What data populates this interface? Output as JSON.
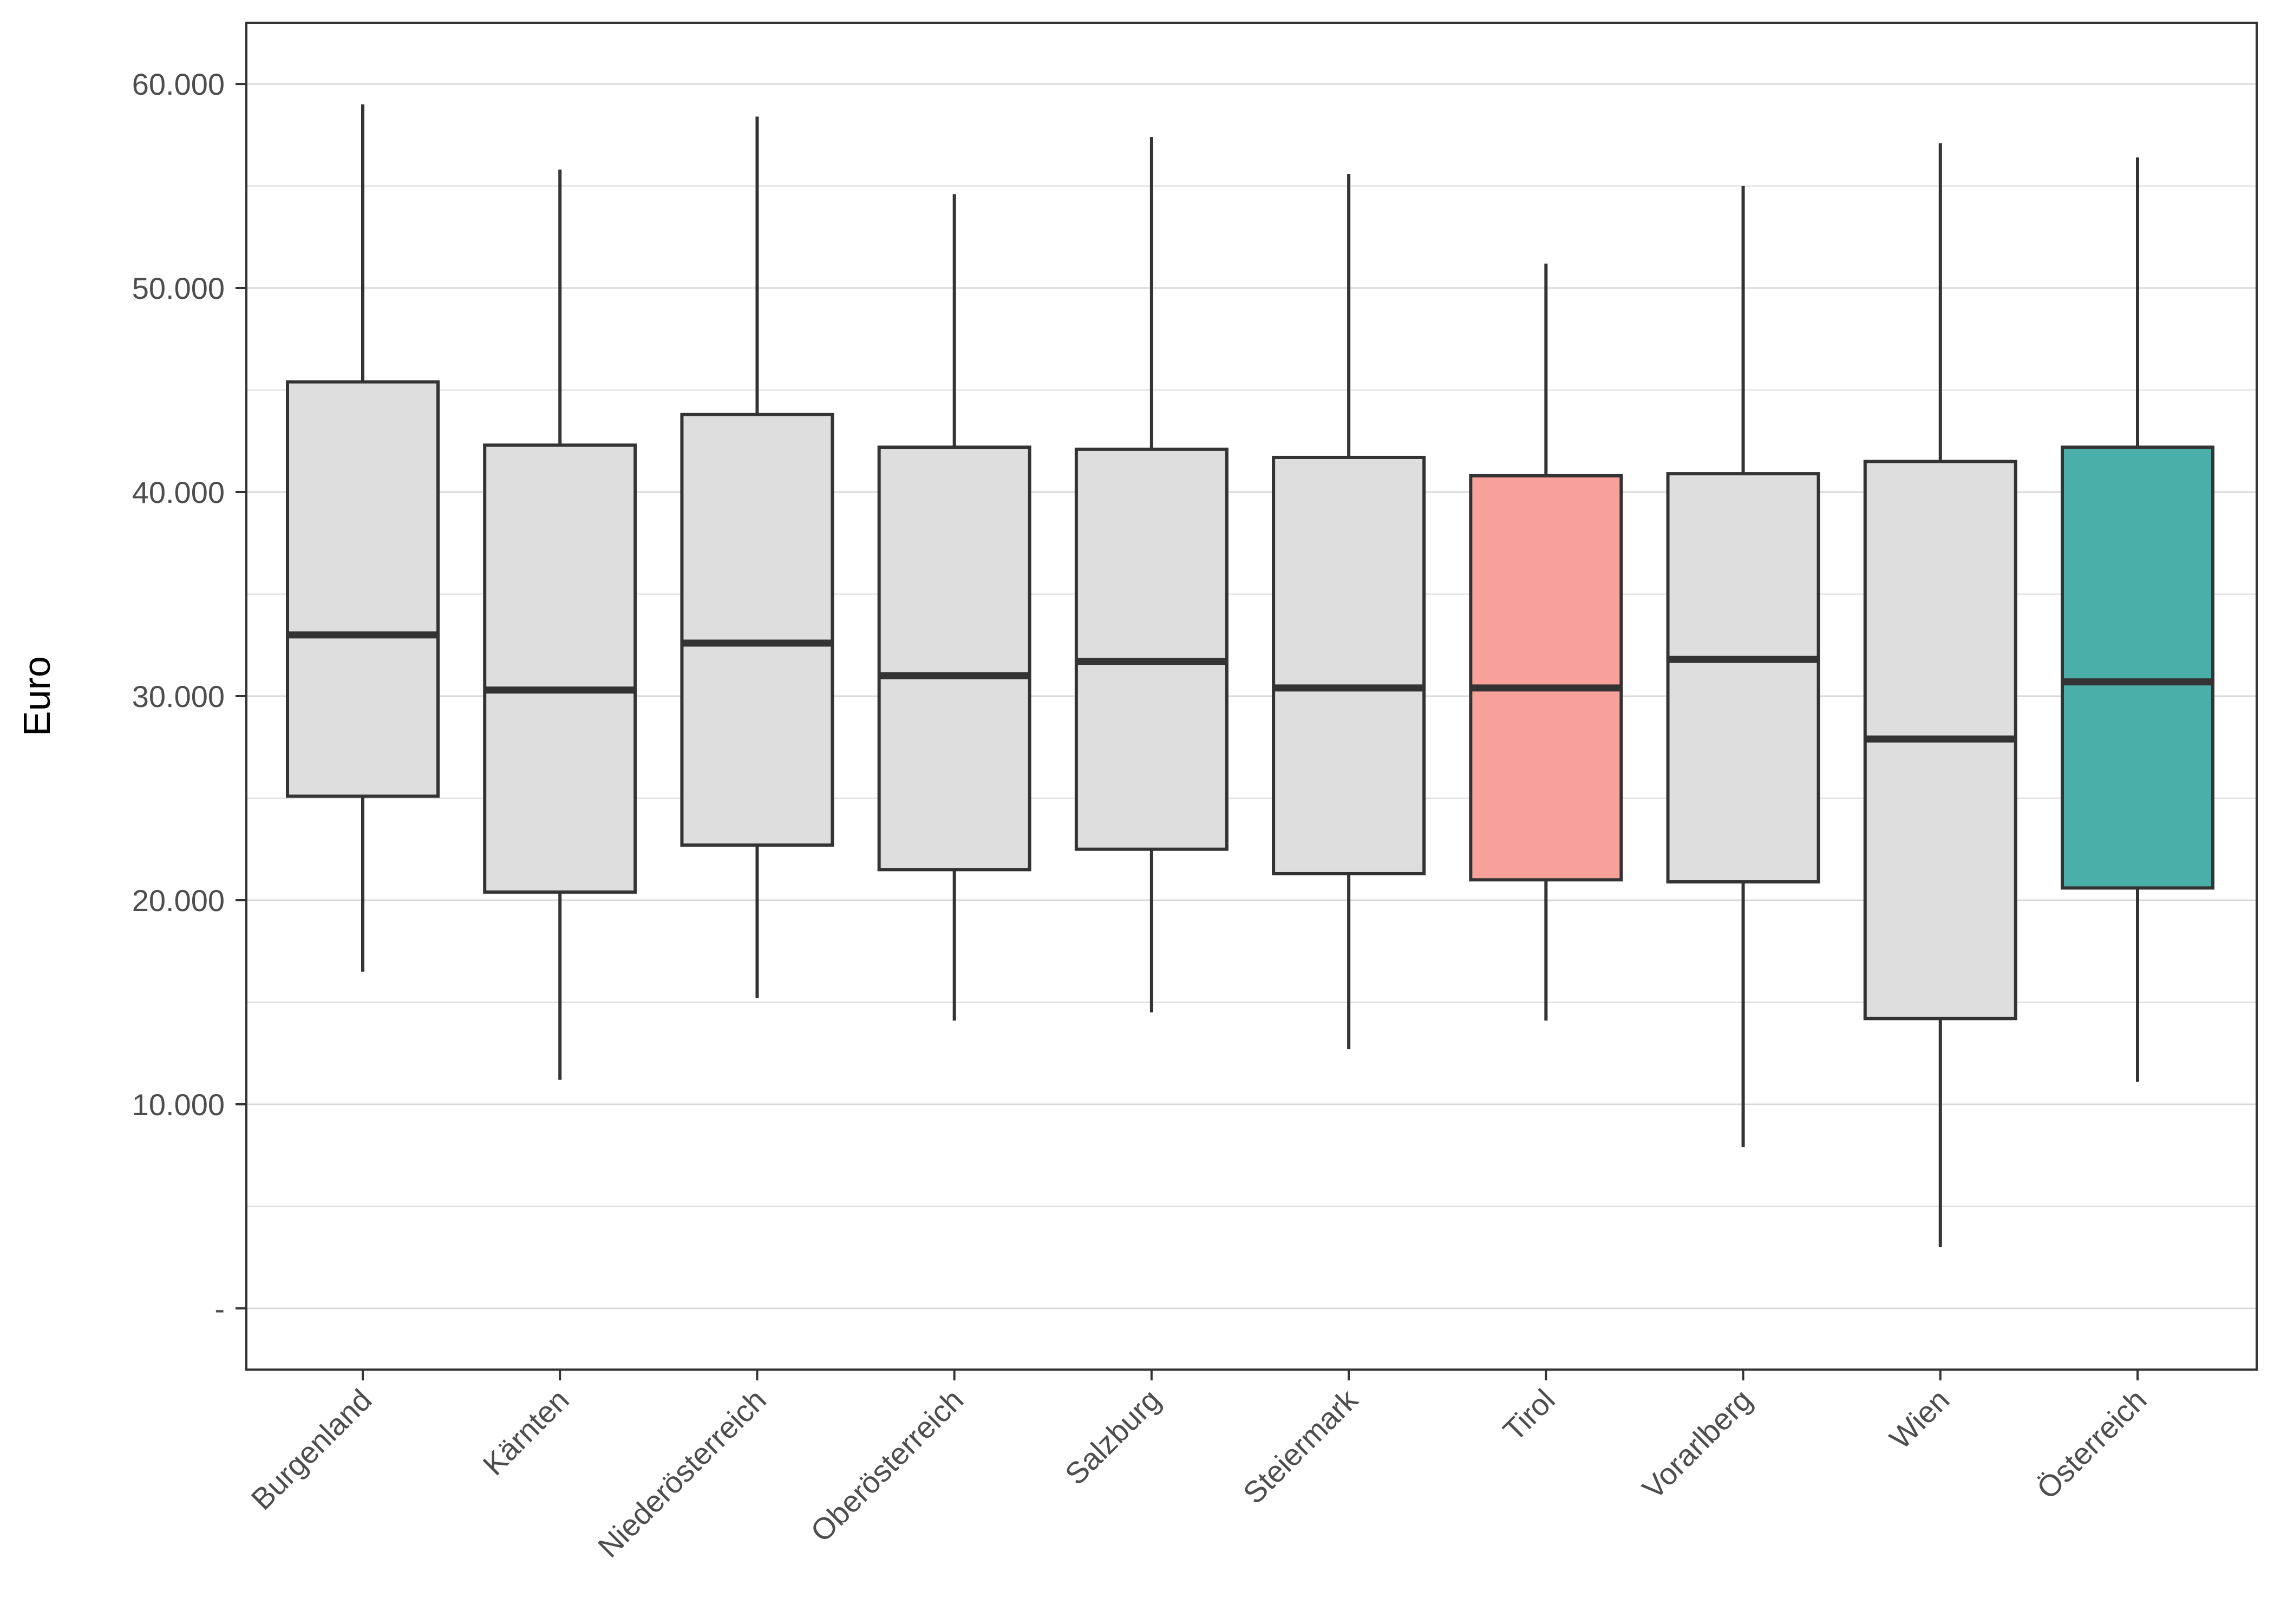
{
  "chart_data": {
    "type": "boxplot",
    "title": "",
    "xlabel": "",
    "ylabel": "Euro",
    "ylim": [
      -3000,
      63000
    ],
    "y_ticks": [
      {
        "value": 0,
        "label": "-"
      },
      {
        "value": 10000,
        "label": "10.000"
      },
      {
        "value": 20000,
        "label": "20.000"
      },
      {
        "value": 30000,
        "label": "30.000"
      },
      {
        "value": 40000,
        "label": "40.000"
      },
      {
        "value": 50000,
        "label": "50.000"
      },
      {
        "value": 60000,
        "label": "60.000"
      }
    ],
    "grid": true,
    "categories": [
      "Burgenland",
      "Kärnten",
      "Niederösterreich",
      "Oberösterreich",
      "Salzburg",
      "Steiermark",
      "Tirol",
      "Vorarlberg",
      "Wien",
      "Österreich"
    ],
    "boxes": [
      {
        "category": "Burgenland",
        "whisker_low": 16500,
        "q1": 25100,
        "median": 33000,
        "q3": 45400,
        "whisker_high": 59000
      },
      {
        "category": "Kärnten",
        "whisker_low": 11200,
        "q1": 20400,
        "median": 30300,
        "q3": 42300,
        "whisker_high": 55800
      },
      {
        "category": "Niederösterreich",
        "whisker_low": 15200,
        "q1": 22700,
        "median": 32600,
        "q3": 43800,
        "whisker_high": 58400
      },
      {
        "category": "Oberösterreich",
        "whisker_low": 14100,
        "q1": 21500,
        "median": 31000,
        "q3": 42200,
        "whisker_high": 54600
      },
      {
        "category": "Salzburg",
        "whisker_low": 14500,
        "q1": 22500,
        "median": 31700,
        "q3": 42100,
        "whisker_high": 57400
      },
      {
        "category": "Steiermark",
        "whisker_low": 12700,
        "q1": 21300,
        "median": 30400,
        "q3": 41700,
        "whisker_high": 55600
      },
      {
        "category": "Tirol",
        "whisker_low": 14100,
        "q1": 21000,
        "median": 30400,
        "q3": 40800,
        "whisker_high": 51200
      },
      {
        "category": "Vorarlberg",
        "whisker_low": 7900,
        "q1": 20900,
        "median": 31800,
        "q3": 40900,
        "whisker_high": 55000
      },
      {
        "category": "Wien",
        "whisker_low": 3000,
        "q1": 14200,
        "median": 27900,
        "q3": 41500,
        "whisker_high": 57100
      },
      {
        "category": "Österreich",
        "whisker_low": 11100,
        "q1": 20600,
        "median": 30700,
        "q3": 42200,
        "whisker_high": 56400
      }
    ],
    "colors": {
      "default_fill": "#dedede",
      "highlight_fill_Tirol": "#f8a09a",
      "highlight_fill_Österreich": "#4aaea9",
      "box_stroke": "#333333",
      "grid": "#d9d9d9",
      "panel_border": "#333333"
    }
  }
}
